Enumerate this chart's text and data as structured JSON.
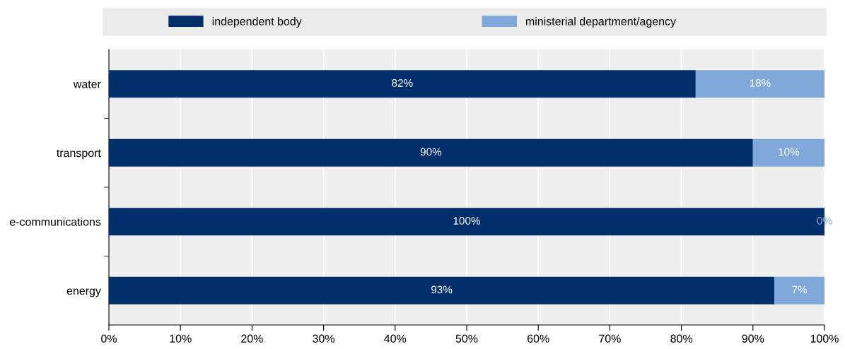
{
  "chart_data": {
    "type": "bar",
    "orientation": "horizontal",
    "stacked": true,
    "categories": [
      "water",
      "transport",
      "e-communications",
      "energy"
    ],
    "series": [
      {
        "name": "independent body",
        "color": "#002f6c",
        "values": [
          82,
          90,
          100,
          93
        ],
        "value_labels": [
          "82%",
          "90%",
          "100%",
          "93%"
        ]
      },
      {
        "name": "ministerial department/agency",
        "color": "#7fa8d8",
        "values": [
          18,
          10,
          0,
          7
        ],
        "value_labels": [
          "18%",
          "10%",
          "0%",
          "7%"
        ]
      }
    ],
    "xlim": [
      0,
      100
    ],
    "xticks": [
      {
        "value": 0,
        "label": "0%"
      },
      {
        "value": 10,
        "label": "10%"
      },
      {
        "value": 20,
        "label": "20%"
      },
      {
        "value": 30,
        "label": "30%"
      },
      {
        "value": 40,
        "label": "40%"
      },
      {
        "value": 50,
        "label": "50%"
      },
      {
        "value": 60,
        "label": "60%"
      },
      {
        "value": 70,
        "label": "70%"
      },
      {
        "value": 80,
        "label": "80%"
      },
      {
        "value": 90,
        "label": "90%"
      },
      {
        "value": 100,
        "label": "100%"
      }
    ],
    "grid": "x",
    "legend": "top"
  }
}
